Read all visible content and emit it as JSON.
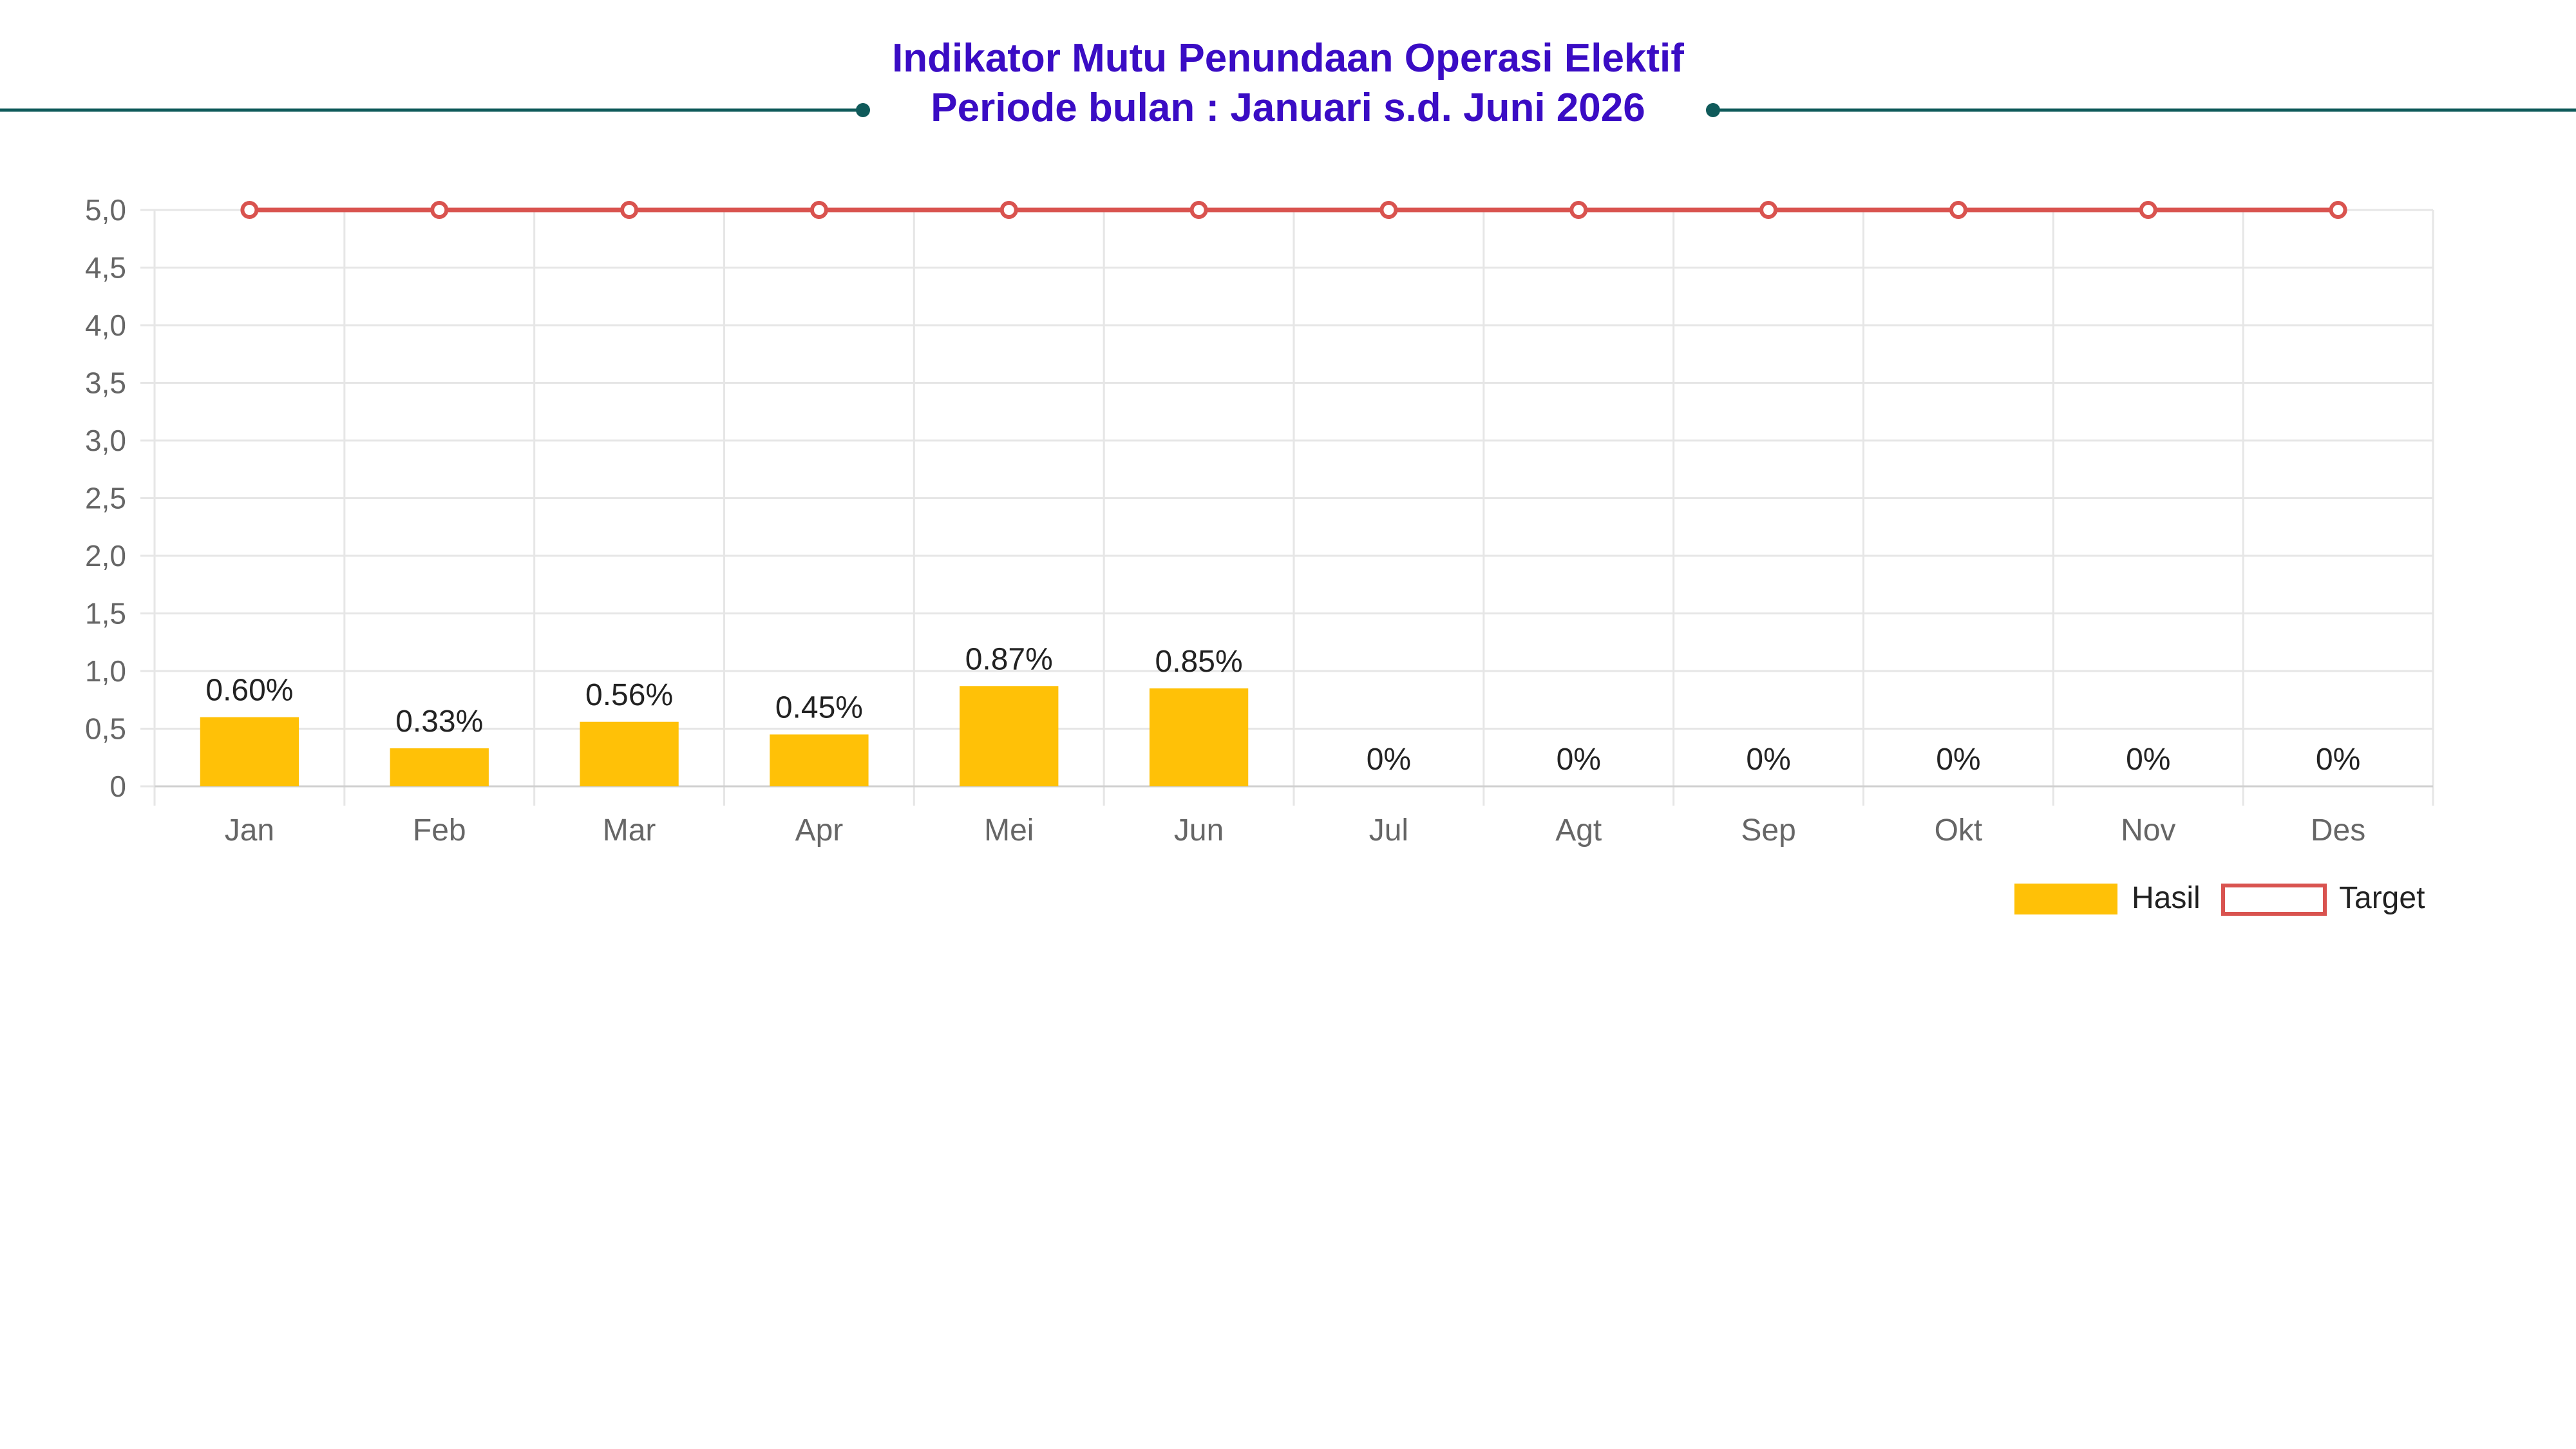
{
  "header": {
    "title_line1": "Indikator Mutu Penundaan Operasi Elektif",
    "title_line2": "Periode bulan : Januari s.d. Juni 2026"
  },
  "colors": {
    "title": "#3a0cc4",
    "divider": "#0f5a5a",
    "bar": "#ffc107",
    "target": "#d9534f",
    "grid": "#e6e6e6",
    "tick_text": "#666666",
    "label_text": "#222222"
  },
  "chart_data": {
    "type": "bar",
    "categories": [
      "Jan",
      "Feb",
      "Mar",
      "Apr",
      "Mei",
      "Jun",
      "Jul",
      "Agt",
      "Sep",
      "Okt",
      "Nov",
      "Des"
    ],
    "series": [
      {
        "name": "Hasil",
        "type": "bar",
        "values": [
          0.6,
          0.33,
          0.56,
          0.45,
          0.87,
          0.85,
          0,
          0,
          0,
          0,
          0,
          0
        ],
        "labels": [
          "0.60%",
          "0.33%",
          "0.56%",
          "0.45%",
          "0.87%",
          "0.85%",
          "0%",
          "0%",
          "0%",
          "0%",
          "0%",
          "0%"
        ]
      },
      {
        "name": "Target",
        "type": "line",
        "values": [
          5,
          5,
          5,
          5,
          5,
          5,
          5,
          5,
          5,
          5,
          5,
          5
        ]
      }
    ],
    "ylim": [
      0,
      5
    ],
    "yticks": [
      0,
      0.5,
      1,
      1.5,
      2,
      2.5,
      3,
      3.5,
      4,
      4.5,
      5
    ],
    "ytick_labels": [
      "0",
      "0,5",
      "1,0",
      "1,5",
      "2,0",
      "2,5",
      "3,0",
      "3,5",
      "4,0",
      "4,5",
      "5,0"
    ],
    "grid": true,
    "legend_position": "bottom-right"
  }
}
